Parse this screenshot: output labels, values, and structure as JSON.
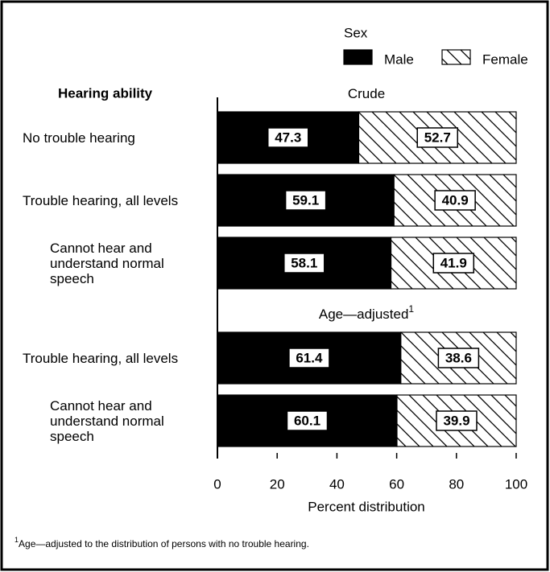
{
  "chart_data": {
    "type": "bar",
    "orientation": "horizontal",
    "stacked": true,
    "category_axis_title": "Hearing ability",
    "x_axis_label": "Percent distribution",
    "legend_title": "Sex",
    "series": [
      {
        "name": "Male",
        "color": "#000000",
        "pattern": "solid"
      },
      {
        "name": "Female",
        "color": "#000000",
        "pattern": "hatch"
      }
    ],
    "panels": [
      {
        "title": "Crude",
        "categories": [
          "No trouble hearing",
          "Trouble hearing, all levels",
          "Cannot hear and understand normal speech"
        ],
        "series": [
          {
            "values": [
              47.3,
              59.1,
              58.1
            ]
          },
          {
            "values": [
              52.7,
              40.9,
              41.9
            ]
          }
        ]
      },
      {
        "title": "Age—adjusted",
        "title_note": "1",
        "categories": [
          "Trouble hearing, all levels",
          "Cannot hear and understand normal speech"
        ],
        "series": [
          {
            "values": [
              61.4,
              60.1
            ]
          },
          {
            "values": [
              38.6,
              39.9
            ]
          }
        ]
      }
    ],
    "xlim": [
      0,
      100
    ],
    "xticks": [
      0,
      20,
      40,
      60,
      80,
      100
    ],
    "footnote_marker": "1",
    "footnote": "Age—adjusted to the distribution of persons with no trouble hearing."
  }
}
